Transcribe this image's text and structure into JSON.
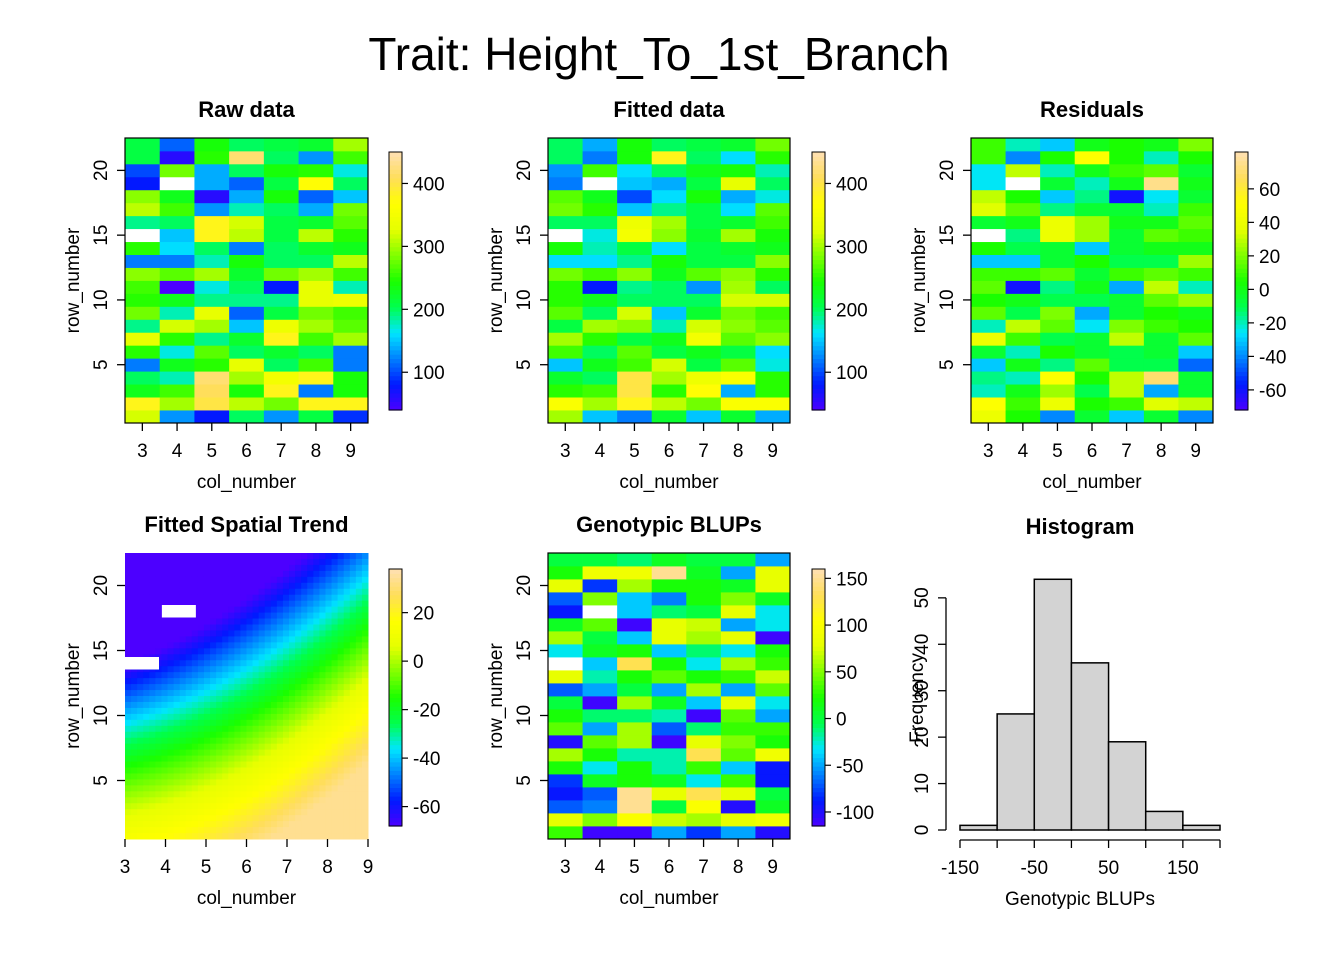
{
  "main_title": "Trait: Height_To_1st_Branch",
  "colors": {
    "palette": [
      "#4c00ff",
      "#0019ff",
      "#0080ff",
      "#00e5ff",
      "#00ff4d",
      "#1aff00",
      "#80ff00",
      "#e6ff00",
      "#ffff00",
      "#ffde59",
      "#ffe0b3"
    ],
    "hist_fill": "#d3d3d3",
    "missing": "#ffffff"
  },
  "chart_data": [
    {
      "type": "heatmap",
      "title": "Raw data",
      "xlabel": "col_number",
      "ylabel": "row_number",
      "x_ticks": [
        3,
        4,
        5,
        6,
        7,
        8,
        9
      ],
      "y_ticks": [
        5,
        10,
        15,
        20
      ],
      "x": [
        3,
        4,
        5,
        6,
        7,
        8,
        9
      ],
      "y": [
        1,
        2,
        3,
        4,
        5,
        6,
        7,
        8,
        9,
        10,
        11,
        12,
        13,
        14,
        15,
        16,
        17,
        18,
        19,
        20,
        21,
        22
      ],
      "zlim": [
        40,
        450
      ],
      "legend_ticks": [
        100,
        200,
        300,
        400
      ],
      "missing": [
        [
          3,
          14
        ],
        [
          4,
          18
        ]
      ],
      "values": [
        [
          320,
          130,
          80,
          200,
          130,
          210,
          90
        ],
        [
          380,
          300,
          400,
          310,
          280,
          380,
          380
        ],
        [
          230,
          260,
          410,
          240,
          380,
          120,
          240
        ],
        [
          200,
          180,
          420,
          300,
          350,
          380,
          240
        ],
        [
          120,
          230,
          250,
          330,
          200,
          260,
          120
        ],
        [
          250,
          170,
          270,
          200,
          220,
          200,
          120
        ],
        [
          330,
          250,
          190,
          220,
          380,
          260,
          300
        ],
        [
          190,
          320,
          300,
          150,
          340,
          300,
          270
        ],
        [
          280,
          180,
          330,
          110,
          210,
          280,
          260
        ],
        [
          250,
          230,
          190,
          190,
          190,
          330,
          340
        ],
        [
          260,
          40,
          170,
          200,
          80,
          330,
          180
        ],
        [
          290,
          270,
          300,
          220,
          280,
          300,
          260
        ],
        [
          120,
          120,
          180,
          240,
          200,
          200,
          310
        ],
        [
          250,
          160,
          200,
          120,
          200,
          220,
          230
        ],
        [
          null,
          150,
          380,
          310,
          210,
          310,
          250
        ],
        [
          190,
          200,
          380,
          320,
          210,
          220,
          270
        ],
        [
          310,
          260,
          130,
          180,
          200,
          140,
          280
        ],
        [
          290,
          230,
          60,
          140,
          240,
          110,
          150
        ],
        [
          80,
          null,
          140,
          110,
          210,
          370,
          200
        ],
        [
          100,
          280,
          140,
          200,
          240,
          250,
          170
        ],
        [
          210,
          60,
          250,
          420,
          200,
          130,
          260
        ],
        [
          210,
          110,
          240,
          200,
          210,
          220,
          300
        ]
      ]
    },
    {
      "type": "heatmap",
      "title": "Fitted data",
      "xlabel": "col_number",
      "ylabel": "row_number",
      "x_ticks": [
        3,
        4,
        5,
        6,
        7,
        8,
        9
      ],
      "y_ticks": [
        5,
        10,
        15,
        20
      ],
      "x": [
        3,
        4,
        5,
        6,
        7,
        8,
        9
      ],
      "y": [
        1,
        2,
        3,
        4,
        5,
        6,
        7,
        8,
        9,
        10,
        11,
        12,
        13,
        14,
        15,
        16,
        17,
        18,
        19,
        20,
        21,
        22
      ],
      "zlim": [
        40,
        450
      ],
      "legend_ticks": [
        100,
        200,
        300,
        400
      ],
      "missing": [
        [
          3,
          14
        ],
        [
          4,
          18
        ]
      ],
      "values": [
        [
          300,
          150,
          120,
          220,
          150,
          220,
          140
        ],
        [
          360,
          300,
          380,
          310,
          280,
          360,
          360
        ],
        [
          250,
          260,
          400,
          250,
          370,
          140,
          250
        ],
        [
          220,
          200,
          400,
          300,
          340,
          360,
          250
        ],
        [
          150,
          230,
          260,
          320,
          210,
          270,
          170
        ],
        [
          260,
          200,
          270,
          210,
          230,
          210,
          160
        ],
        [
          300,
          250,
          210,
          230,
          350,
          270,
          290
        ],
        [
          210,
          300,
          290,
          180,
          320,
          290,
          270
        ],
        [
          270,
          200,
          320,
          150,
          220,
          280,
          260
        ],
        [
          250,
          230,
          200,
          200,
          200,
          320,
          320
        ],
        [
          250,
          80,
          190,
          200,
          130,
          300,
          200
        ],
        [
          280,
          260,
          290,
          230,
          270,
          290,
          250
        ],
        [
          160,
          160,
          190,
          240,
          210,
          210,
          290
        ],
        [
          240,
          180,
          210,
          160,
          210,
          220,
          230
        ],
        [
          null,
          170,
          350,
          290,
          220,
          300,
          240
        ],
        [
          200,
          200,
          340,
          300,
          210,
          220,
          260
        ],
        [
          280,
          250,
          150,
          190,
          210,
          160,
          270
        ],
        [
          270,
          230,
          100,
          160,
          240,
          140,
          170
        ],
        [
          120,
          null,
          150,
          140,
          210,
          330,
          200
        ],
        [
          130,
          260,
          160,
          200,
          230,
          240,
          180
        ],
        [
          200,
          120,
          240,
          380,
          200,
          160,
          250
        ],
        [
          200,
          140,
          240,
          200,
          210,
          220,
          280
        ]
      ]
    },
    {
      "type": "heatmap",
      "title": "Residuals",
      "xlabel": "col_number",
      "ylabel": "row_number",
      "x_ticks": [
        3,
        4,
        5,
        6,
        7,
        8,
        9
      ],
      "y_ticks": [
        5,
        10,
        15,
        20
      ],
      "x": [
        3,
        4,
        5,
        6,
        7,
        8,
        9
      ],
      "y": [
        1,
        2,
        3,
        4,
        5,
        6,
        7,
        8,
        9,
        10,
        11,
        12,
        13,
        14,
        15,
        16,
        17,
        18,
        19,
        20,
        21,
        22
      ],
      "zlim": [
        -72,
        82
      ],
      "legend_ticks": [
        -60,
        -40,
        -20,
        0,
        20,
        40,
        60
      ],
      "missing": [
        [
          3,
          14
        ],
        [
          4,
          18
        ]
      ],
      "values": [
        [
          40,
          5,
          -40,
          -5,
          -30,
          -5,
          -40
        ],
        [
          50,
          10,
          40,
          5,
          10,
          35,
          30
        ],
        [
          -20,
          0,
          25,
          -10,
          30,
          -35,
          -5
        ],
        [
          -15,
          -20,
          50,
          5,
          30,
          70,
          -5
        ],
        [
          -30,
          0,
          -15,
          15,
          -10,
          -10,
          -45
        ],
        [
          -5,
          -20,
          5,
          -5,
          -10,
          -5,
          -30
        ],
        [
          40,
          10,
          -10,
          -5,
          30,
          -5,
          15
        ],
        [
          -20,
          30,
          15,
          -25,
          20,
          10,
          5
        ],
        [
          15,
          -10,
          20,
          -35,
          -5,
          5,
          0
        ],
        [
          5,
          0,
          -10,
          -10,
          -5,
          15,
          25
        ],
        [
          15,
          -60,
          -15,
          0,
          -35,
          30,
          -20
        ],
        [
          10,
          10,
          15,
          -5,
          10,
          15,
          10
        ],
        [
          -30,
          -30,
          -5,
          5,
          -10,
          -10,
          25
        ],
        [
          5,
          -10,
          -5,
          -30,
          -5,
          0,
          0
        ],
        [
          null,
          -15,
          40,
          25,
          -5,
          15,
          10
        ],
        [
          -5,
          0,
          40,
          25,
          0,
          0,
          15
        ],
        [
          35,
          15,
          -15,
          -5,
          -5,
          -20,
          10
        ],
        [
          30,
          5,
          -30,
          -15,
          -60,
          -25,
          -5
        ],
        [
          -25,
          null,
          -5,
          -20,
          0,
          75,
          0
        ],
        [
          -25,
          30,
          -20,
          0,
          10,
          15,
          -5
        ],
        [
          10,
          -40,
          5,
          50,
          5,
          -20,
          5
        ],
        [
          10,
          -20,
          -30,
          0,
          5,
          0,
          20
        ]
      ]
    },
    {
      "type": "heatmap",
      "title": "Fitted Spatial Trend",
      "xlabel": "col_number",
      "ylabel": "row_number",
      "x_ticks": [
        3,
        4,
        5,
        6,
        7,
        8,
        9
      ],
      "y_ticks": [
        5,
        10,
        15,
        20
      ],
      "x_range": [
        3,
        9
      ],
      "y_range": [
        0.5,
        22.5
      ],
      "zlim": [
        -68,
        38
      ],
      "legend_ticks": [
        -60,
        -40,
        -20,
        0,
        20
      ],
      "missing": [
        [
          3,
          14
        ],
        [
          4,
          18
        ]
      ],
      "surface": "smooth; about -68 at top-left (col 3, row 22), about 0 across rows 6-9, about 30 along the bottom rows"
    },
    {
      "type": "heatmap",
      "title": "Genotypic BLUPs",
      "xlabel": "col_number",
      "ylabel": "row_number",
      "x_ticks": [
        3,
        4,
        5,
        6,
        7,
        8,
        9
      ],
      "y_ticks": [
        5,
        10,
        15,
        20
      ],
      "x": [
        3,
        4,
        5,
        6,
        7,
        8,
        9
      ],
      "y": [
        1,
        2,
        3,
        4,
        5,
        6,
        7,
        8,
        9,
        10,
        11,
        12,
        13,
        14,
        15,
        16,
        17,
        18,
        19,
        20,
        21,
        22
      ],
      "zlim": [
        -115,
        160
      ],
      "legend_ticks": [
        -100,
        -50,
        0,
        50,
        100,
        150
      ],
      "missing": [
        [
          3,
          14
        ],
        [
          4,
          18
        ]
      ],
      "values": [
        [
          30,
          -110,
          -110,
          -50,
          -80,
          -50,
          -100
        ],
        [
          80,
          50,
          100,
          70,
          60,
          80,
          90
        ],
        [
          -70,
          -60,
          150,
          0,
          100,
          -100,
          10
        ],
        [
          -90,
          -70,
          150,
          80,
          130,
          80,
          0
        ],
        [
          -80,
          10,
          20,
          10,
          -30,
          30,
          -90
        ],
        [
          20,
          -30,
          20,
          -20,
          30,
          -40,
          -90
        ],
        [
          60,
          20,
          -20,
          -20,
          130,
          40,
          90
        ],
        [
          -100,
          40,
          60,
          -110,
          80,
          50,
          20
        ],
        [
          40,
          -50,
          60,
          -70,
          -10,
          30,
          30
        ],
        [
          20,
          -10,
          -10,
          -20,
          -110,
          40,
          -50
        ],
        [
          0,
          -110,
          60,
          10,
          -40,
          80,
          -30
        ],
        [
          -70,
          -50,
          0,
          -50,
          60,
          -50,
          40
        ],
        [
          80,
          -20,
          20,
          40,
          20,
          30,
          70
        ],
        [
          null,
          -40,
          130,
          20,
          -30,
          60,
          30
        ],
        [
          -30,
          10,
          20,
          -40,
          -10,
          -30,
          20
        ],
        [
          60,
          0,
          -40,
          80,
          60,
          80,
          -110
        ],
        [
          10,
          40,
          -110,
          80,
          70,
          -50,
          -30
        ],
        [
          -90,
          null,
          -40,
          -10,
          0,
          80,
          -30
        ],
        [
          -70,
          50,
          -40,
          -60,
          20,
          50,
          10
        ],
        [
          80,
          -80,
          60,
          20,
          20,
          10,
          80
        ],
        [
          20,
          90,
          90,
          150,
          10,
          -50,
          80
        ],
        [
          0,
          0,
          -10,
          10,
          0,
          0,
          -50
        ]
      ]
    },
    {
      "type": "histogram",
      "title": "Histogram",
      "xlabel": "Genotypic BLUPs",
      "ylabel": "Frequency",
      "bin_edges": [
        -150,
        -100,
        -50,
        0,
        50,
        100,
        150,
        200
      ],
      "counts": [
        1,
        25,
        54,
        36,
        19,
        4,
        1
      ],
      "x_ticks": [
        -150,
        -50,
        50,
        150
      ],
      "y_ticks": [
        0,
        10,
        20,
        30,
        40,
        50
      ],
      "ylim": [
        0,
        56
      ]
    }
  ]
}
